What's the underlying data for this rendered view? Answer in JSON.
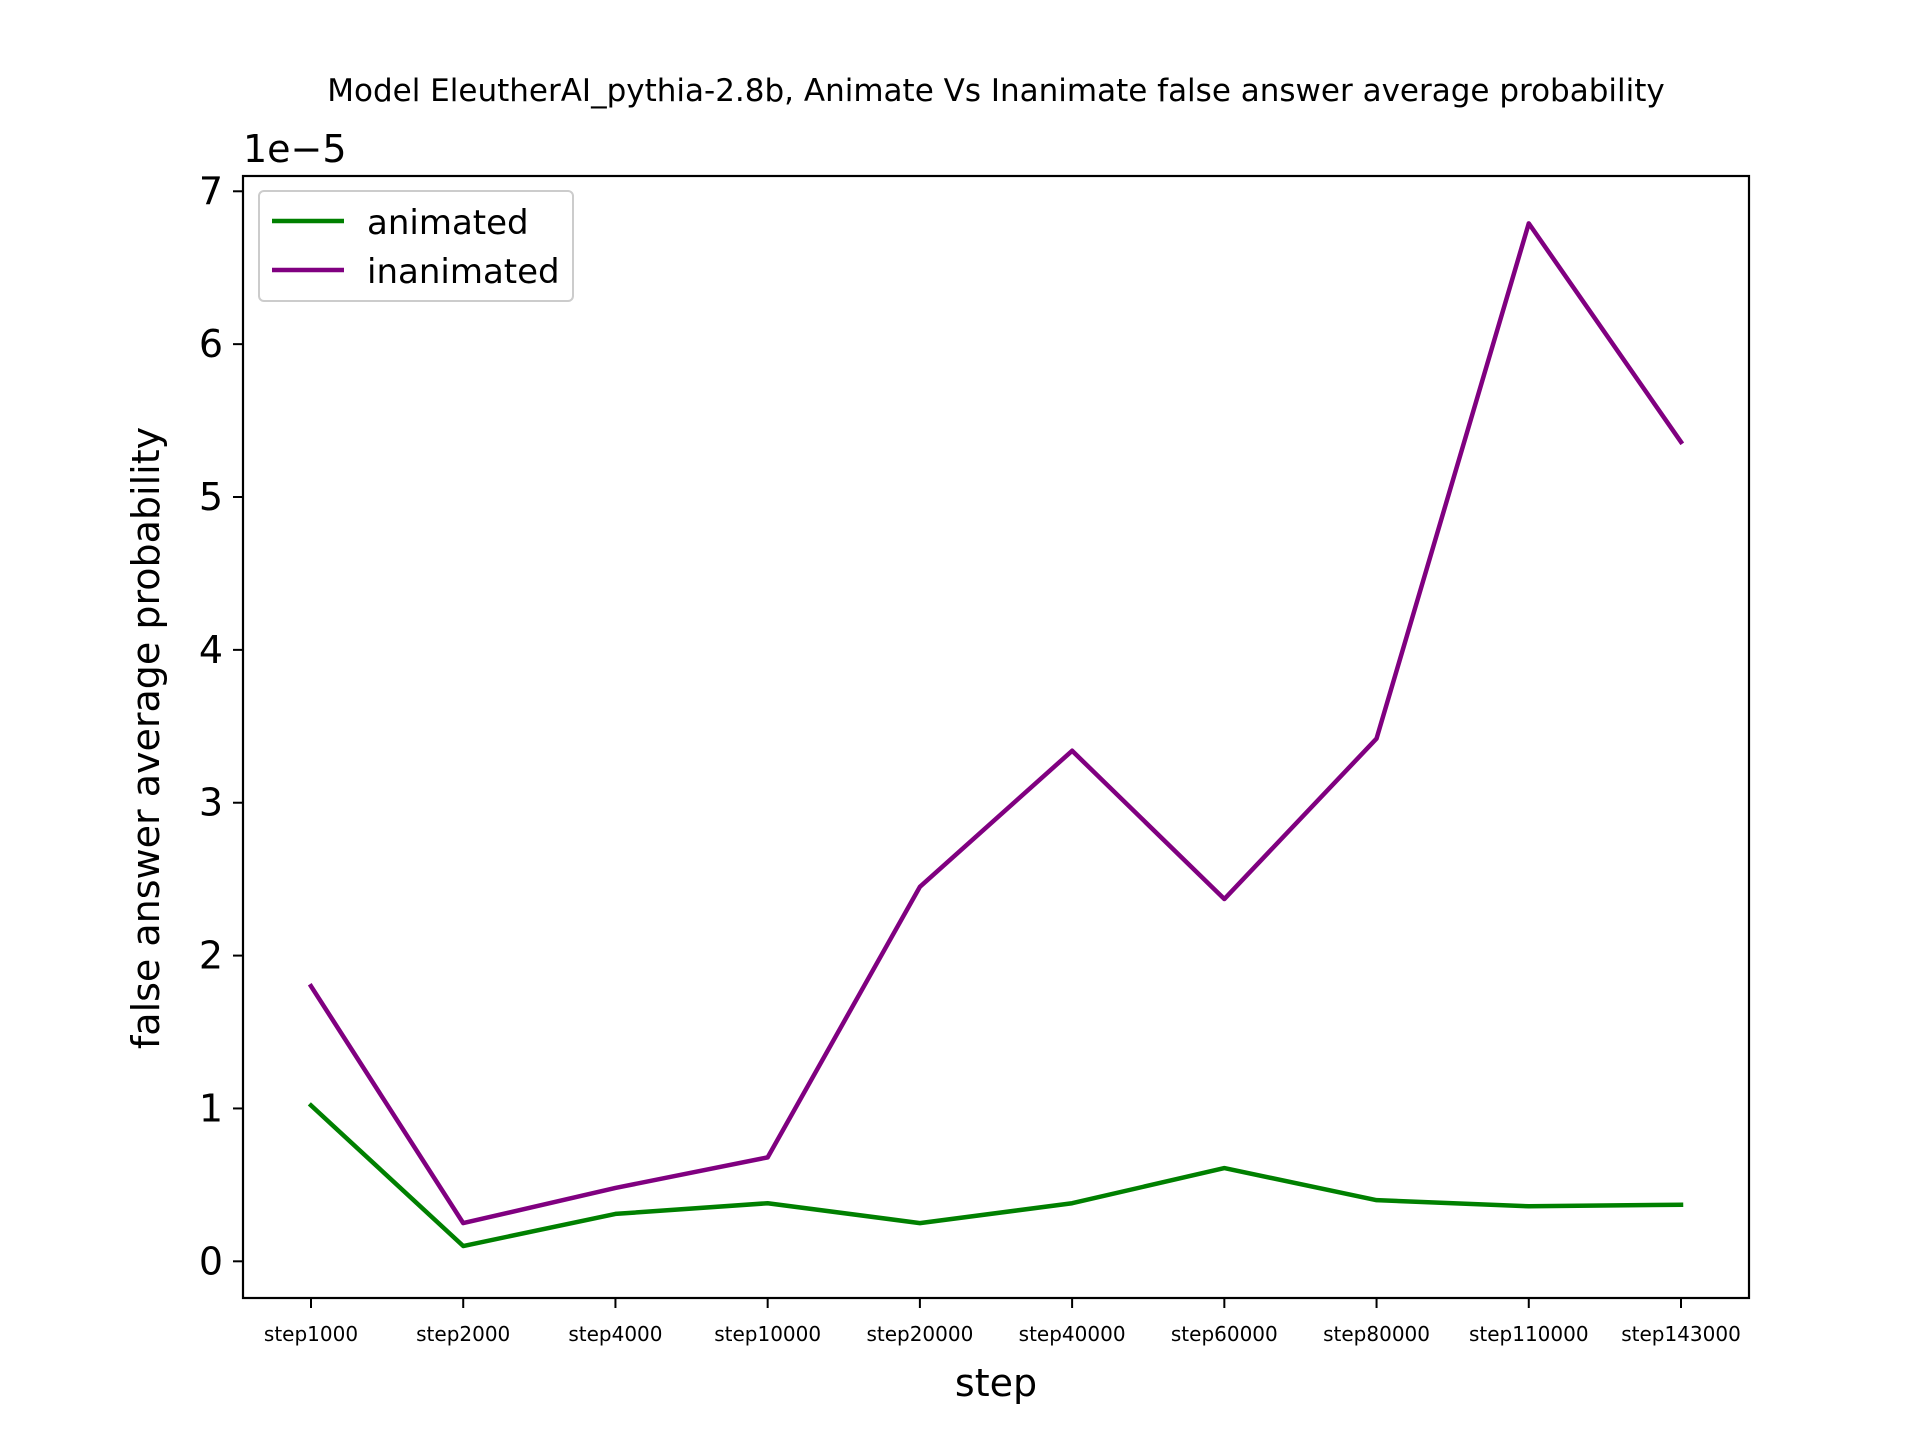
{
  "chart_data": {
    "type": "line",
    "title": "Model EleutherAI_pythia-2.8b, Animate Vs Inanimate false answer average probability",
    "xlabel": "step",
    "ylabel": "false answer average probability",
    "y_offset_text": "1e−5",
    "y_scale": 1e-05,
    "categories": [
      "step1000",
      "step2000",
      "step4000",
      "step10000",
      "step20000",
      "step40000",
      "step60000",
      "step80000",
      "step110000",
      "step143000"
    ],
    "ylim": [
      -2.4e-06,
      7.1e-05
    ],
    "yticks": [
      0,
      1e-05,
      2e-05,
      3e-05,
      4e-05,
      5e-05,
      6e-05,
      7e-05
    ],
    "ytick_labels": [
      "0",
      "1",
      "2",
      "3",
      "4",
      "5",
      "6",
      "7"
    ],
    "grid": false,
    "legend_position": "upper left",
    "series": [
      {
        "name": "animated",
        "color": "#008000",
        "values": [
          1.02e-05,
          1e-06,
          3.1e-06,
          3.8e-06,
          2.5e-06,
          3.8e-06,
          6.1e-06,
          4e-06,
          3.6e-06,
          3.7e-06
        ]
      },
      {
        "name": "inanimated",
        "color": "#800080",
        "values": [
          1.8e-05,
          2.5e-06,
          4.8e-06,
          6.8e-06,
          2.45e-05,
          3.34e-05,
          2.37e-05,
          3.42e-05,
          6.79e-05,
          5.36e-05
        ]
      }
    ]
  }
}
